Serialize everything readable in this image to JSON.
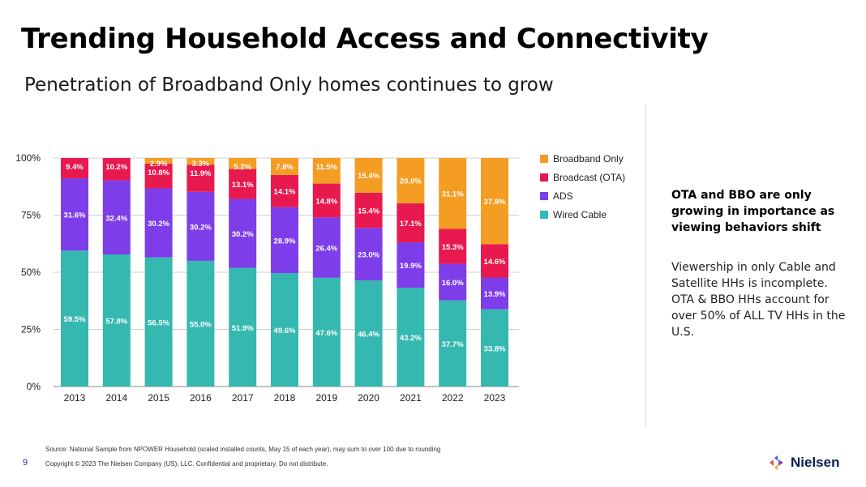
{
  "slide": {
    "title": "Trending Household Access and Connectivity",
    "subtitle": "Penetration of Broadband Only homes continues to grow",
    "side_heading": "OTA and BBO are only growing in importance as viewing behaviors shift",
    "side_body": "Viewership in only Cable and Satellite HHs is incomplete. OTA & BBO HHs account for over 50% of ALL TV HHs in the U.S.",
    "source": "Source: National Sample from NPOWER Household (scaled installed counts, May 15 of each year), may sum to over 100 due to rounding",
    "copyright": "Copyright © 2023 The Nielsen Company (US), LLC. Confidential and proprietary. Do not distribute.",
    "page_number": "9",
    "logo_text": "Nielsen",
    "logo_colors": [
      "#e8553a",
      "#2f6fd6",
      "#f3a623",
      "#8b3fb8"
    ]
  },
  "chart_data": {
    "type": "bar",
    "stacked": true,
    "categories": [
      "2013",
      "2014",
      "2015",
      "2016",
      "2017",
      "2018",
      "2019",
      "2020",
      "2021",
      "2022",
      "2023"
    ],
    "yticks": [
      "100%",
      "75%",
      "50%",
      "25%",
      "0%"
    ],
    "ylim": [
      0,
      100
    ],
    "grid": true,
    "legend_position": "right",
    "series": [
      {
        "name": "Wired Cable",
        "color": "#35b8b0",
        "values": [
          59.5,
          57.8,
          56.5,
          55.0,
          51.9,
          49.6,
          47.6,
          46.4,
          43.2,
          37.7,
          33.8
        ]
      },
      {
        "name": "ADS",
        "color": "#7d3de8",
        "values": [
          31.6,
          32.4,
          30.2,
          30.2,
          30.2,
          28.9,
          26.4,
          23.0,
          19.9,
          16.0,
          13.9
        ]
      },
      {
        "name": "Broadcast (OTA)",
        "color": "#e8194f",
        "values": [
          9.4,
          10.2,
          10.8,
          11.9,
          13.1,
          14.1,
          14.8,
          15.4,
          17.1,
          15.3,
          14.6
        ]
      },
      {
        "name": "Broadband Only",
        "color": "#f59d22",
        "values": [
          0,
          0,
          2.9,
          3.3,
          5.2,
          7.8,
          11.5,
          15.4,
          20.0,
          31.1,
          37.8
        ]
      }
    ],
    "data_labels": [
      [
        "59.5%",
        "57.8%",
        "56.5%",
        "55.0%",
        "51.9%",
        "49.6%",
        "47.6%",
        "46.4%",
        "43.2%",
        "37.7%",
        "33.8%"
      ],
      [
        "31.6%",
        "32.4%",
        "30.2%",
        "30.2%",
        "30.2%",
        "28.9%",
        "26.4%",
        "23.0%",
        "19.9%",
        "16.0%",
        "13.9%"
      ],
      [
        "9.4%",
        "10.2%",
        "10.8%",
        "11.9%",
        "13.1%",
        "14.1%",
        "14.8%",
        "15.4%",
        "17.1%",
        "15.3%",
        "14.6%"
      ],
      [
        "",
        "",
        "2.9%",
        "3.3%",
        "5.2%",
        "7.8%",
        "11.5%",
        "15.4%",
        "20.0%",
        "31.1%",
        "37.8%"
      ]
    ],
    "legend_order": [
      "Broadband Only",
      "Broadcast (OTA)",
      "ADS",
      "Wired Cable"
    ]
  }
}
